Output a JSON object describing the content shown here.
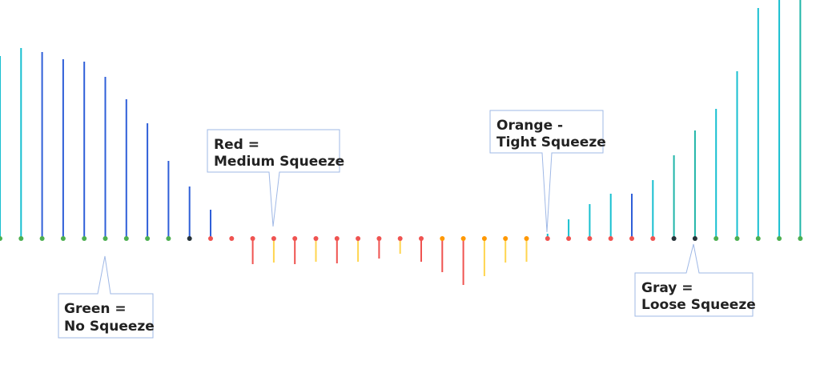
{
  "chart_data": {
    "type": "bar",
    "title": "",
    "xlabel": "",
    "ylabel": "",
    "ylim": [
      -58,
      290
    ],
    "grid": false,
    "legend": "callouts",
    "values": [
      228,
      238,
      233,
      224,
      221,
      202,
      174,
      144,
      97,
      65,
      36,
      3,
      -32,
      -30,
      -32,
      -29,
      -31,
      -29,
      -25,
      -19,
      -29,
      -42,
      -58,
      -47,
      -30,
      -29,
      6,
      24,
      43,
      56,
      56,
      73,
      104,
      135,
      162,
      209,
      288,
      305,
      305
    ],
    "bar_colors": [
      "#17BFD0",
      "#17BFD0",
      "#2F5FD8",
      "#2F5FD8",
      "#2F5FD8",
      "#2F5FD8",
      "#2F5FD8",
      "#2F5FD8",
      "#2F5FD8",
      "#2F5FD8",
      "#2F5FD8",
      "#EF5350",
      "#EF5350",
      "#FFD54F",
      "#EF5350",
      "#FFD54F",
      "#EF5350",
      "#FFD54F",
      "#EF5350",
      "#FFD54F",
      "#EF5350",
      "#EF5350",
      "#EF5350",
      "#FFD54F",
      "#FFD54F",
      "#FFD54F",
      "#17BFD0",
      "#17BFD0",
      "#17BFD0",
      "#17BFD0",
      "#2F5FD8",
      "#17BFD0",
      "#1FB5A8",
      "#1FB5A8",
      "#17BFD0",
      "#17BFD0",
      "#17BFD0",
      "#17BFD0",
      "#1FB5A8"
    ],
    "dot_states": [
      "green",
      "green",
      "green",
      "green",
      "green",
      "green",
      "green",
      "green",
      "green",
      "black",
      "red",
      "red",
      "red",
      "red",
      "red",
      "red",
      "red",
      "red",
      "red",
      "red",
      "red",
      "orange",
      "orange",
      "orange",
      "orange",
      "orange",
      "red",
      "red",
      "red",
      "red",
      "red",
      "red",
      "black",
      "black",
      "green",
      "green",
      "green",
      "green",
      "green"
    ],
    "dot_colors": {
      "green": "#4CAF50",
      "black": "#263238",
      "red": "#EF5350",
      "orange": "#FF9800"
    }
  },
  "callouts": [
    {
      "lines": [
        "Green =",
        "No Squeeze"
      ]
    },
    {
      "lines": [
        "Red =",
        "Medium Squeeze"
      ]
    },
    {
      "lines": [
        "Orange -",
        "Tight Squeeze"
      ]
    },
    {
      "lines": [
        "Gray =",
        "Loose Squeeze"
      ]
    }
  ]
}
